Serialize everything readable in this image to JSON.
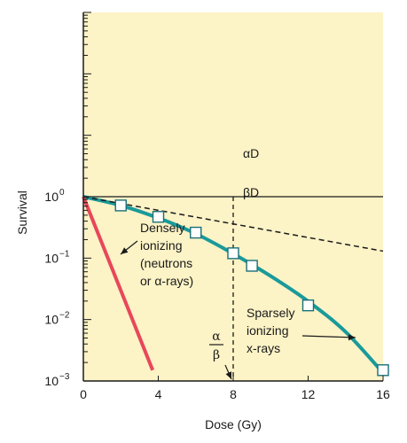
{
  "chart_data": {
    "type": "line",
    "title": "",
    "xlabel": "Dose (Gy)",
    "ylabel": "Survival",
    "xlim": [
      0,
      16
    ],
    "ylim": [
      0.001,
      1
    ],
    "ylog": true,
    "upper_log_limit": 1000,
    "x_ticks": [
      {
        "value": 0,
        "label": "0"
      },
      {
        "value": 4,
        "label": "4"
      },
      {
        "value": 8,
        "label": "8"
      },
      {
        "value": 12,
        "label": "12"
      },
      {
        "value": 16,
        "label": "16"
      }
    ],
    "y_ticks": [
      {
        "value": 1,
        "base": "10",
        "exp": "0"
      },
      {
        "value": 0.1,
        "base": "10",
        "exp": "−1"
      },
      {
        "value": 0.01,
        "base": "10",
        "exp": "−2"
      },
      {
        "value": 0.001,
        "base": "10",
        "exp": "−3"
      }
    ],
    "series": [
      {
        "key": "sparse",
        "color": "#1a9a9a",
        "x": [
          0,
          2,
          4,
          6,
          8,
          10,
          12,
          14,
          16
        ],
        "y": [
          1,
          0.72,
          0.45,
          0.25,
          0.118,
          0.051,
          0.0198,
          0.0063,
          0.00135
        ],
        "markers_x": [
          2,
          4,
          6,
          8,
          9,
          12,
          16
        ],
        "markers_y": [
          0.72,
          0.47,
          0.26,
          0.12,
          0.075,
          0.017,
          0.0015
        ]
      },
      {
        "key": "dense",
        "color": "#e8475a",
        "x": [
          0,
          3.7
        ],
        "y": [
          1,
          0.0015
        ]
      },
      {
        "key": "alpha_d",
        "color": "#1a1a1a",
        "dashed": true,
        "x": [
          0,
          16
        ],
        "y": [
          1,
          0.13
        ]
      }
    ],
    "vertical_marker": {
      "x": 8,
      "dashed": true,
      "color": "#1a1a1a"
    },
    "reference_line": {
      "y": 1,
      "color": "#1a1a1a"
    },
    "annotations": {
      "alpha_d": "αD",
      "beta_d": "βD",
      "dense_label": [
        "Densely",
        "ionizing",
        "(neutrons",
        "or α-rays)"
      ],
      "sparse_label": [
        "Sparsely",
        "ionizing",
        "x-rays"
      ],
      "ratio_numerator": "α",
      "ratio_denominator": "β"
    },
    "colors": {
      "plot_background": "#fcf3c6",
      "axis": "#1a1a1a",
      "marker_fill": "#ffffff",
      "marker_stroke": "#1a6f7a"
    }
  }
}
